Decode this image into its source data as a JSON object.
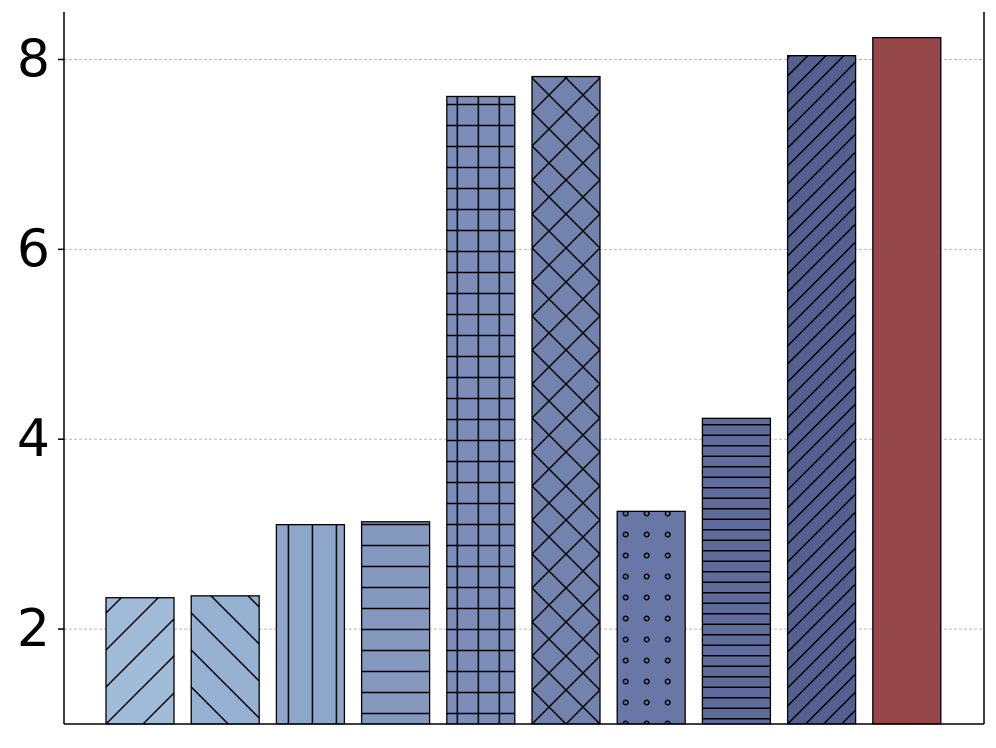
{
  "chart_data": {
    "type": "bar",
    "categories": [
      null,
      null,
      null,
      null,
      null,
      null,
      null,
      null,
      null,
      null
    ],
    "values": [
      2.33,
      2.35,
      3.1,
      3.13,
      7.61,
      7.82,
      3.24,
      4.22,
      8.04,
      8.23
    ],
    "colors": [
      "#a0bcd8",
      "#97b1d3",
      "#8ea6c9",
      "#8599bf",
      "#7b8db8",
      "#7284ae",
      "#6877a5",
      "#5f6c9c",
      "#54608f",
      "#96474a"
    ],
    "hatches": [
      "/",
      "\\",
      "|",
      "-",
      "+",
      "x",
      "o",
      "--",
      "//",
      ""
    ],
    "ylim": [
      1,
      8.5
    ],
    "yticks": [
      2,
      4,
      6,
      8
    ],
    "grid": true
  }
}
